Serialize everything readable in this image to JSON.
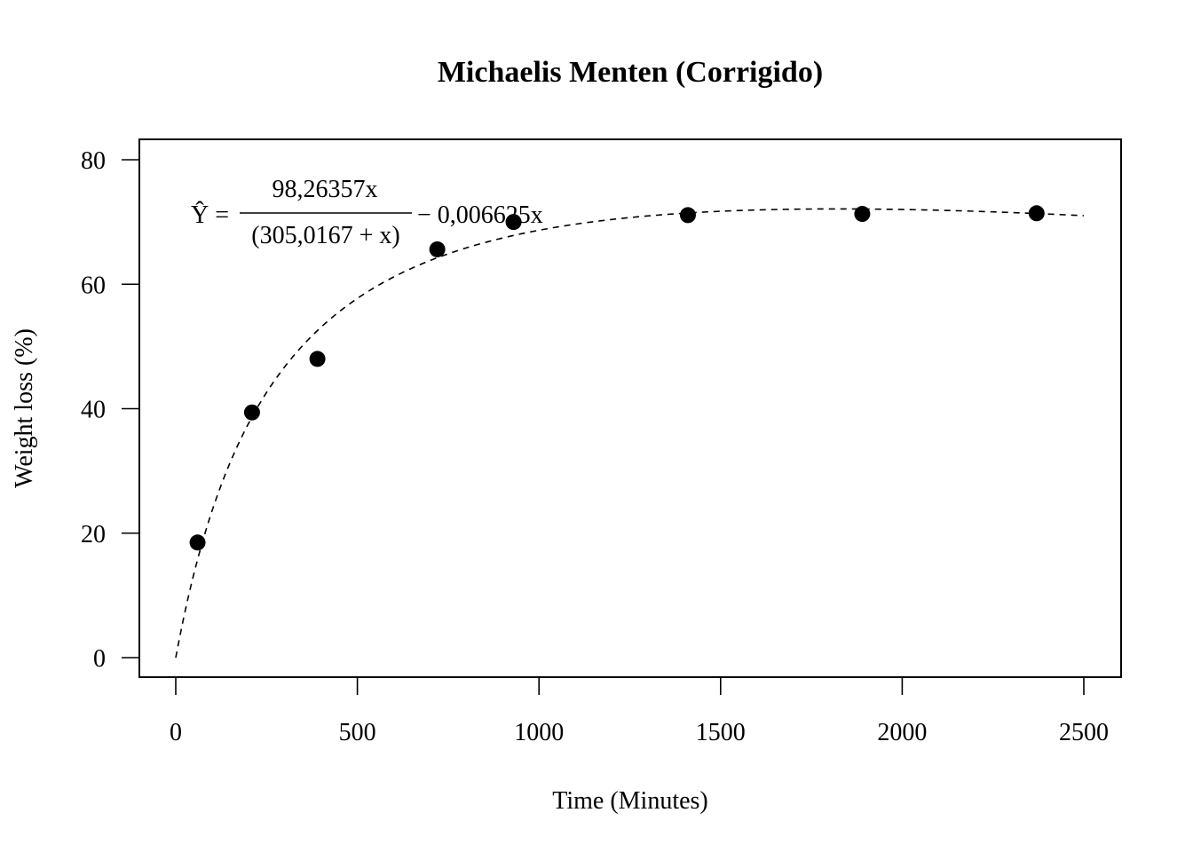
{
  "chart_data": {
    "type": "scatter",
    "title": "Michaelis Menten (Corrigido)",
    "xlabel": "Time (Minutes)",
    "ylabel": "Weight loss (%)",
    "xlim": [
      0,
      2500
    ],
    "ylim": [
      0,
      80
    ],
    "x_ticks": [
      0,
      500,
      1000,
      1500,
      2000,
      2500
    ],
    "y_ticks": [
      0,
      20,
      40,
      60,
      80
    ],
    "x_tick_labels": [
      "0",
      "500",
      "1000",
      "1500",
      "2000",
      "2500"
    ],
    "y_tick_labels": [
      "0",
      "20",
      "40",
      "60",
      "80"
    ],
    "grid": false,
    "legend": "none",
    "points": {
      "x": [
        60,
        210,
        390,
        720,
        930,
        1410,
        1890,
        2370
      ],
      "y": [
        18.5,
        39.4,
        48.0,
        65.6,
        70.0,
        71.1,
        71.3,
        71.4
      ]
    },
    "fit": {
      "a": 98.26357,
      "b": 305.0167,
      "c": 0.006625,
      "x_range": [
        0,
        2500
      ],
      "style": "dashed",
      "equation": {
        "lhs": "Ŷ =",
        "numerator": "98,26357x",
        "denominator": "(305,0167 + x)",
        "tail": "− 0,006625x"
      }
    },
    "colors": {
      "points": "#000000",
      "line": "#000000",
      "background": "#ffffff"
    }
  }
}
